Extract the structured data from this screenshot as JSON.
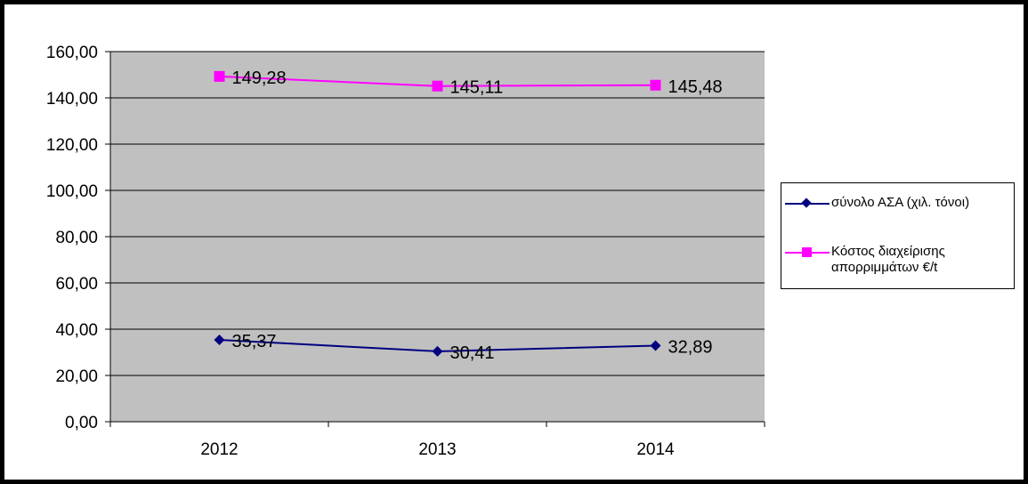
{
  "chart_data": {
    "type": "line",
    "categories": [
      "2012",
      "2013",
      "2014"
    ],
    "ylim": [
      0,
      160
    ],
    "ystep": 20,
    "ytick_labels": [
      "0,00",
      "20,00",
      "40,00",
      "60,00",
      "80,00",
      "100,00",
      "120,00",
      "140,00",
      "160,00"
    ],
    "grid": true,
    "plot_background": "#c0c0c0",
    "legend_position": "right",
    "series": [
      {
        "name": "σύνολο ΑΣΑ (χιλ. τόνοι)",
        "values": [
          35.37,
          30.41,
          32.89
        ],
        "labels": [
          "35,37",
          "30,41",
          "32,89"
        ],
        "color": "#000080",
        "marker": "diamond"
      },
      {
        "name": "Κόστος διαχείρισης απορριμμάτων €/t",
        "values": [
          149.28,
          145.11,
          145.48
        ],
        "labels": [
          "149,28",
          "145,11",
          "145,48"
        ],
        "color": "#ff00ff",
        "marker": "square"
      }
    ]
  }
}
